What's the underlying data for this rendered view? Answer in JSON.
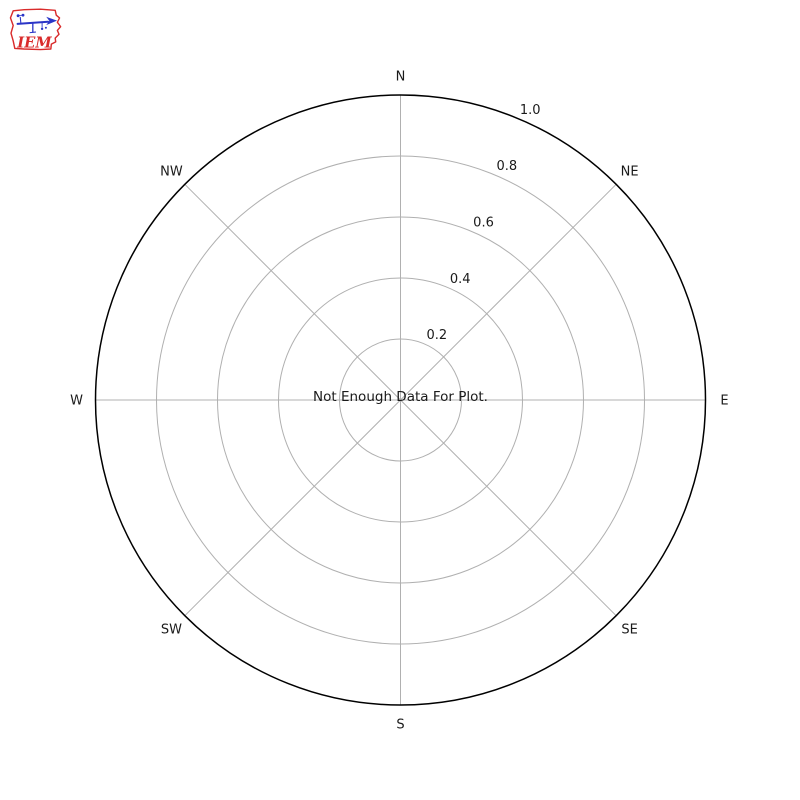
{
  "page": {
    "background_color": "#ffffff"
  },
  "logo": {
    "text": "IEM",
    "outline_color": "#d92b2b",
    "sketch_color": "#2b35c7",
    "text_color": "#d92b2b"
  },
  "chart_data": {
    "type": "polar",
    "subtype": "windrose",
    "title": "",
    "directions": [
      "N",
      "NE",
      "E",
      "SE",
      "S",
      "SW",
      "W",
      "NW"
    ],
    "radial_ticks": [
      0.2,
      0.4,
      0.6,
      0.8,
      1.0
    ],
    "radial_tick_labels": [
      "0.2",
      "0.4",
      "0.6",
      "0.8",
      "1.0"
    ],
    "rlim": [
      0,
      1.0
    ],
    "radial_label_angle_deg": 22.5,
    "grid": true,
    "series": [],
    "annotation": "Not Enough Data For Plot.",
    "colors": {
      "grid_color": "#b0b0b0",
      "outer_circle_color": "#000000",
      "label_color": "#1a1a1a"
    }
  }
}
